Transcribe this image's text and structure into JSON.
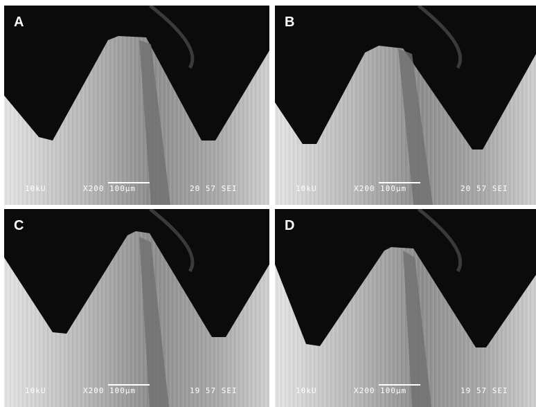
{
  "panels": [
    {
      "label": "A",
      "voltage": "10kU",
      "magnification": "X200",
      "scale_bar": "100μm",
      "info": "20 57 SEI"
    },
    {
      "label": "B",
      "voltage": "10kU",
      "magnification": "X200",
      "scale_bar": "100μm",
      "info": "20 57 SEI"
    },
    {
      "label": "C",
      "voltage": "10kU",
      "magnification": "X200",
      "scale_bar": "100μm",
      "info": "19 57 SEI"
    },
    {
      "label": "D",
      "voltage": "10kU",
      "magnification": "X200",
      "scale_bar": "100μm",
      "info": "19 57 SEI"
    }
  ]
}
